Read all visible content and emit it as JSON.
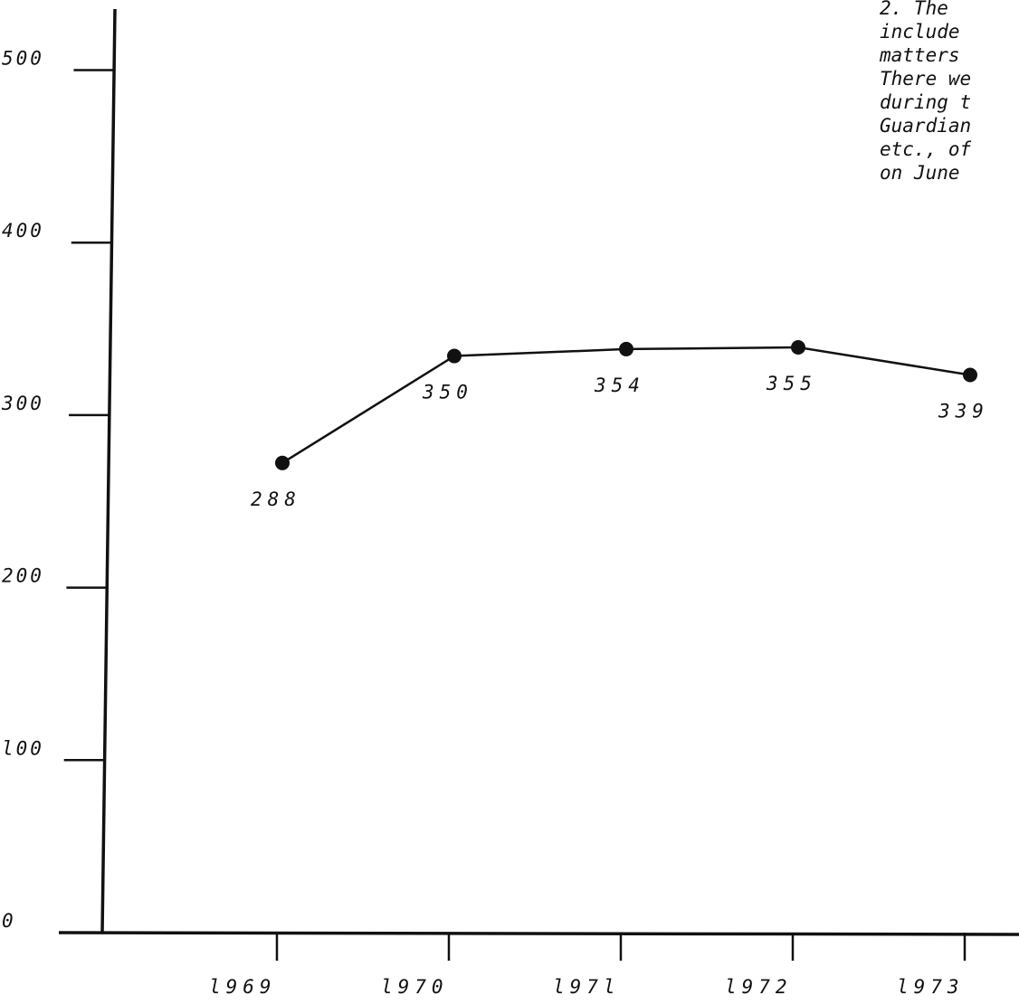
{
  "chart_data": {
    "type": "line",
    "categories": [
      "1969",
      "1970",
      "1971",
      "1972",
      "1973"
    ],
    "x_tick_labels": [
      "l969",
      "l970",
      "l97l",
      "l972",
      "l973"
    ],
    "values": [
      288,
      350,
      354,
      355,
      339
    ],
    "data_labels": [
      "288",
      "350",
      "354",
      "355",
      "339"
    ],
    "y_tick_values": [
      0,
      100,
      200,
      300,
      400,
      500
    ],
    "y_tick_labels": [
      "0",
      "l00",
      "200",
      "300",
      "400",
      "500"
    ],
    "ylim": [
      0,
      520
    ],
    "title": "",
    "xlabel": "",
    "ylabel": "",
    "grid": false,
    "marker": "filled-circle",
    "line_color": "#111111"
  },
  "side_note": {
    "lines": [
      "2.  The",
      "include",
      "matters",
      "There we",
      "during t",
      "Guardian",
      "etc., of",
      "on June"
    ]
  }
}
